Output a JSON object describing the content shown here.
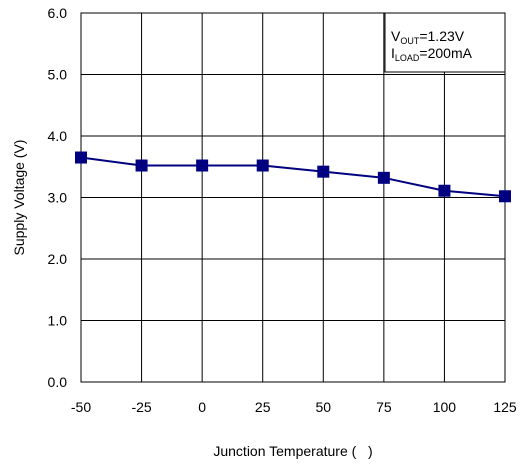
{
  "chart_data": {
    "type": "line",
    "title": "",
    "xlabel": "Junction Temperature (   )",
    "ylabel": "Supply Voltage (V)",
    "x": [
      -50,
      -25,
      0,
      25,
      50,
      75,
      100,
      125
    ],
    "x_tick_labels": [
      "-50",
      "-25",
      "0",
      "25",
      "50",
      "75",
      "100",
      "125"
    ],
    "y_tick_labels": [
      "0.0",
      "1.0",
      "2.0",
      "3.0",
      "4.0",
      "5.0",
      "6.0"
    ],
    "xlim": [
      -50,
      125
    ],
    "ylim": [
      0,
      6
    ],
    "grid": true,
    "series": [
      {
        "values": [
          3.65,
          3.52,
          3.52,
          3.52,
          3.42,
          3.32,
          3.11,
          3.02
        ],
        "color": "#000080",
        "marker": "square"
      }
    ],
    "annotation": {
      "line1_main": "V",
      "line1_sub": "OUT",
      "line1_rest": "=1.23V",
      "line2_main": "I",
      "line2_sub": "LOAD",
      "line2_rest": "=200mA"
    }
  }
}
